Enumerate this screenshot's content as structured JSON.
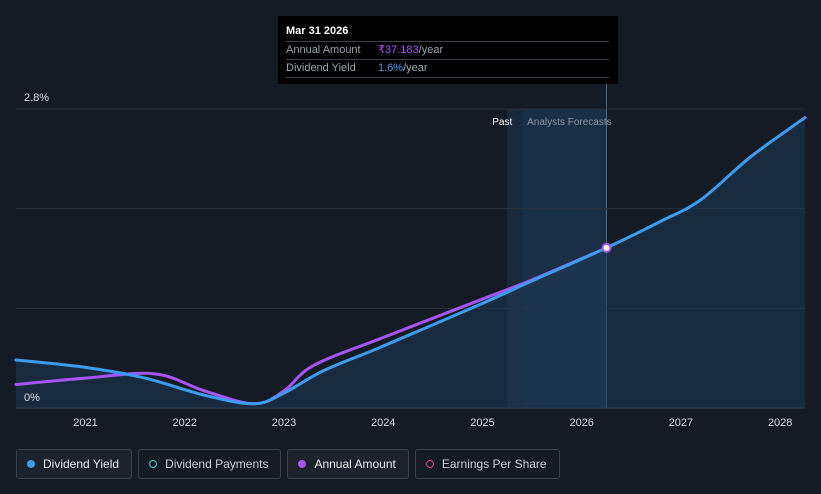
{
  "tooltip": {
    "date": "Mar 31 2026",
    "rows": [
      {
        "label": "Annual Amount",
        "value": "₹37.183",
        "unit": "/year"
      },
      {
        "label": "Dividend Yield",
        "value": "1.6%",
        "unit": "/year"
      }
    ]
  },
  "regions": {
    "past_label": "Past",
    "forecast_label": "Analysts Forecasts"
  },
  "legend": [
    {
      "label": "Dividend Yield",
      "color": "#3b9cf0",
      "style": "filled",
      "active": true
    },
    {
      "label": "Dividend Payments",
      "color": "#2dd4bf",
      "style": "ring",
      "active": false
    },
    {
      "label": "Annual Amount",
      "color": "#a855f7",
      "style": "filled",
      "active": true
    },
    {
      "label": "Earnings Per Share",
      "color": "#e0407a",
      "style": "ring",
      "active": false
    }
  ],
  "chart_data": {
    "type": "line",
    "x_ticks": [
      "2021",
      "2022",
      "2023",
      "2024",
      "2025",
      "2026",
      "2027",
      "2028"
    ],
    "y_ticks": [
      "0%",
      "2.8%"
    ],
    "ylim": [
      0,
      2.8
    ],
    "xlim": [
      2020.3,
      2028.25
    ],
    "grid": true,
    "past_end": 2025.25,
    "forecast_start": 2025.4,
    "highlight_x": 2026.25,
    "series": [
      {
        "name": "Dividend Yield",
        "color": "#3b9cf0",
        "points": [
          [
            2020.3,
            0.45
          ],
          [
            2021.0,
            0.38
          ],
          [
            2021.6,
            0.28
          ],
          [
            2022.2,
            0.12
          ],
          [
            2022.7,
            0.04
          ],
          [
            2023.0,
            0.14
          ],
          [
            2023.4,
            0.35
          ],
          [
            2024.0,
            0.58
          ],
          [
            2025.0,
            0.98
          ],
          [
            2025.5,
            1.19
          ],
          [
            2026.25,
            1.5
          ],
          [
            2026.8,
            1.75
          ],
          [
            2027.2,
            1.95
          ],
          [
            2027.7,
            2.35
          ],
          [
            2028.25,
            2.72
          ]
        ]
      },
      {
        "name": "Annual Amount",
        "color": "#a855f7",
        "points": [
          [
            2020.3,
            0.22
          ],
          [
            2021.0,
            0.28
          ],
          [
            2021.7,
            0.32
          ],
          [
            2022.2,
            0.16
          ],
          [
            2022.7,
            0.04
          ],
          [
            2023.0,
            0.16
          ],
          [
            2023.3,
            0.4
          ],
          [
            2024.0,
            0.66
          ],
          [
            2025.0,
            1.02
          ],
          [
            2025.5,
            1.2
          ],
          [
            2026.25,
            1.5
          ]
        ]
      }
    ]
  }
}
